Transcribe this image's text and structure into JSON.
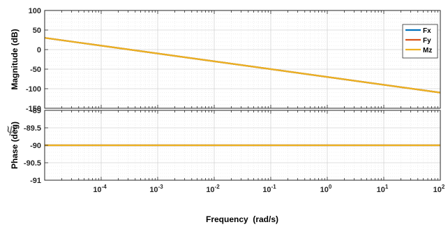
{
  "side_label": "ψ",
  "legend": [
    {
      "name": "Fx",
      "color": "#0072BD"
    },
    {
      "name": "Fy",
      "color": "#D95319"
    },
    {
      "name": "Mz",
      "color": "#EDB120"
    }
  ],
  "chart_data": [
    {
      "type": "line",
      "title": "",
      "xlabel": "",
      "ylabel": "Magnitude (dB)",
      "xscale": "log",
      "xlim": [
        1e-05,
        100
      ],
      "ylim": [
        -150,
        100
      ],
      "yticks": [
        100,
        50,
        0,
        -50,
        -100,
        -150
      ],
      "ytick_labels": [
        "100",
        "50",
        "0",
        "-50",
        "-100",
        "-150"
      ],
      "grid": true,
      "legend_position": "top-right",
      "series": [
        {
          "name": "Fx",
          "color": "#0072BD",
          "x": [
            1e-05,
            100
          ],
          "y": [
            30,
            -110
          ]
        },
        {
          "name": "Fy",
          "color": "#D95319",
          "x": [
            1e-05,
            100
          ],
          "y": [
            30,
            -110
          ]
        },
        {
          "name": "Mz",
          "color": "#EDB120",
          "x": [
            1e-05,
            100
          ],
          "y": [
            30,
            -110
          ]
        }
      ]
    },
    {
      "type": "line",
      "title": "",
      "xlabel": "Frequency  (rad/s)",
      "ylabel": "Phase (deg)",
      "xscale": "log",
      "xlim": [
        1e-05,
        100
      ],
      "ylim": [
        -91,
        -89
      ],
      "yticks": [
        -89,
        -89.5,
        -90,
        -90.5,
        -91
      ],
      "ytick_labels": [
        "-89",
        "-89.5",
        "-90",
        "-90.5",
        "-91"
      ],
      "xticks": [
        0.0001,
        0.001,
        0.01,
        0.1,
        1,
        10,
        100
      ],
      "xtick_bases": [
        "10",
        "10",
        "10",
        "10",
        "10",
        "10",
        "10"
      ],
      "xtick_exponents": [
        "-4",
        "-3",
        "-2",
        "-1",
        "0",
        "1",
        "2"
      ],
      "grid": true,
      "series": [
        {
          "name": "Fx",
          "color": "#0072BD",
          "x": [
            1e-05,
            100
          ],
          "y": [
            -90,
            -90
          ]
        },
        {
          "name": "Fy",
          "color": "#D95319",
          "x": [
            1e-05,
            100
          ],
          "y": [
            -90,
            -90
          ]
        },
        {
          "name": "Mz",
          "color": "#EDB120",
          "x": [
            1e-05,
            100
          ],
          "y": [
            -90,
            -90
          ]
        }
      ]
    }
  ]
}
